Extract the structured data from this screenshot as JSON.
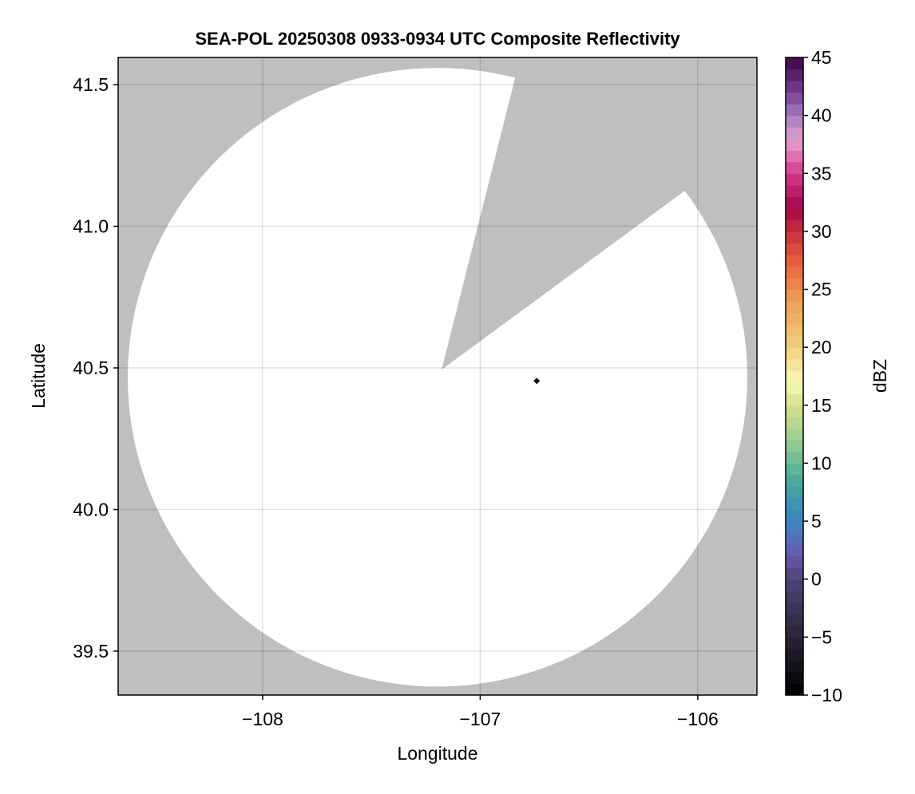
{
  "chart_data": {
    "type": "heatmap",
    "title": "SEA-POL 20250308 0933-0934 UTC Composite Reflectivity",
    "xlabel": "Longitude",
    "ylabel": "Latitude",
    "xlim": [
      -108.664,
      -105.728
    ],
    "ylim": [
      39.345,
      41.596
    ],
    "xticks": [
      -108,
      -107,
      -106
    ],
    "xtick_labels": [
      "−108",
      "−107",
      "−106"
    ],
    "yticks": [
      39.5,
      40.0,
      40.5,
      41.0,
      41.5
    ],
    "ytick_labels": [
      "39.5",
      "40.0",
      "40.5",
      "41.0",
      "41.5"
    ],
    "grid": true,
    "background_color": "#bfbfbf",
    "coverage": {
      "description_color": "#ffffff",
      "center": [
        -107.196,
        40.467
      ],
      "radius_lon": 1.424,
      "radius_lat": 1.092,
      "blocked_sector": {
        "apex": [
          -107.177,
          40.494
        ],
        "edge1": [
          -106.839,
          41.525
        ],
        "edge2": [
          -106.062,
          41.124
        ]
      }
    },
    "reflectivity_values": "none above -10 dBZ in coverage area",
    "marker": {
      "lon": -106.74,
      "lat": 40.454,
      "shape": "diamond",
      "color": "#000000"
    },
    "colorbar": {
      "label": "dBZ",
      "range": [
        -10,
        45
      ],
      "bin_width": 1,
      "ticks": [
        -10,
        -5,
        0,
        5,
        10,
        15,
        20,
        25,
        30,
        35,
        40,
        45
      ],
      "tick_labels": [
        "−10",
        "−5",
        "0",
        "5",
        "10",
        "15",
        "20",
        "25",
        "30",
        "35",
        "40",
        "45"
      ],
      "colormap_stops": [
        [
          -10,
          "#000000"
        ],
        [
          -5,
          "#2a2438"
        ],
        [
          0,
          "#4e4478"
        ],
        [
          2,
          "#6a56a8"
        ],
        [
          4,
          "#4c78c0"
        ],
        [
          6,
          "#3b8fb8"
        ],
        [
          8,
          "#45a3a0"
        ],
        [
          10,
          "#66b898"
        ],
        [
          12,
          "#9ccc94"
        ],
        [
          15,
          "#d4e08e"
        ],
        [
          17,
          "#f8f8b8"
        ],
        [
          20,
          "#f0d07e"
        ],
        [
          24,
          "#eba05a"
        ],
        [
          27,
          "#e8683e"
        ],
        [
          30,
          "#c8303e"
        ],
        [
          32,
          "#a20848"
        ],
        [
          35,
          "#d43a8e"
        ],
        [
          37,
          "#e883b8"
        ],
        [
          38,
          "#e0a0d0"
        ],
        [
          40,
          "#a57cbc"
        ],
        [
          42,
          "#7a3e92"
        ],
        [
          45,
          "#3a0848"
        ]
      ]
    }
  }
}
